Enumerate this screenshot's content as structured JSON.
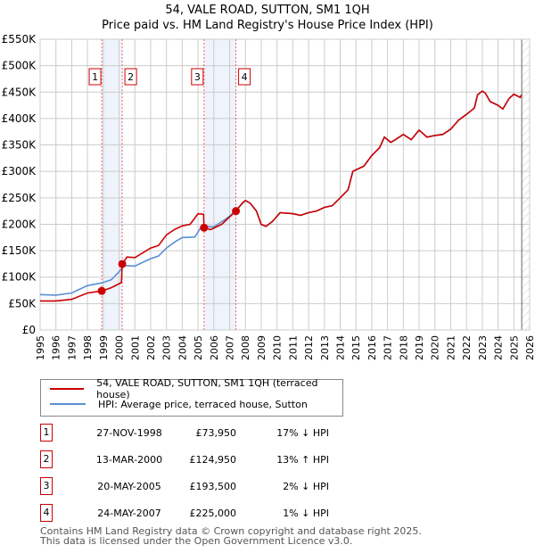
{
  "chart_data": {
    "type": "line",
    "title": "54, VALE ROAD, SUTTON, SM1 1QH",
    "subtitle": "Price paid vs. HM Land Registry's House Price Index (HPI)",
    "xlim": [
      1995,
      2026
    ],
    "ylim": [
      0,
      550000
    ],
    "y_ticks": [
      "£0",
      "£50K",
      "£100K",
      "£150K",
      "£200K",
      "£250K",
      "£300K",
      "£350K",
      "£400K",
      "£450K",
      "£500K",
      "£550K"
    ],
    "x_ticks": [
      "1995",
      "1996",
      "1997",
      "1998",
      "1999",
      "2000",
      "2001",
      "2002",
      "2003",
      "2004",
      "2005",
      "2006",
      "2007",
      "2008",
      "2009",
      "2010",
      "2011",
      "2012",
      "2013",
      "2014",
      "2015",
      "2016",
      "2017",
      "2018",
      "2019",
      "2020",
      "2021",
      "2022",
      "2023",
      "2024",
      "2025",
      "2026"
    ],
    "grid": true,
    "series": [
      {
        "name": "54, VALE ROAD, SUTTON, SM1 1QH (terraced house)",
        "color": "#cc0000",
        "points": [
          [
            1995,
            55000
          ],
          [
            1996,
            55000
          ],
          [
            1997,
            58000
          ],
          [
            1998,
            70000
          ],
          [
            1998.9,
            73950
          ],
          [
            1999.5,
            80000
          ],
          [
            2000.15,
            90000
          ],
          [
            2000.2,
            124950
          ],
          [
            2000.5,
            138000
          ],
          [
            2001,
            137000
          ],
          [
            2002,
            155000
          ],
          [
            2002.5,
            160000
          ],
          [
            2003,
            180000
          ],
          [
            2003.5,
            190000
          ],
          [
            2004,
            197000
          ],
          [
            2004.5,
            200000
          ],
          [
            2005,
            220000
          ],
          [
            2005.35,
            219000
          ],
          [
            2005.38,
            193500
          ],
          [
            2005.8,
            190000
          ],
          [
            2006.5,
            200000
          ],
          [
            2007.4,
            225000
          ],
          [
            2007.8,
            240000
          ],
          [
            2008,
            245000
          ],
          [
            2008.3,
            240000
          ],
          [
            2008.7,
            225000
          ],
          [
            2009,
            200000
          ],
          [
            2009.3,
            196000
          ],
          [
            2009.7,
            205000
          ],
          [
            2010.2,
            222000
          ],
          [
            2011,
            220000
          ],
          [
            2011.5,
            217000
          ],
          [
            2012,
            222000
          ],
          [
            2012.5,
            225000
          ],
          [
            2013,
            232000
          ],
          [
            2013.5,
            235000
          ],
          [
            2014,
            250000
          ],
          [
            2014.5,
            265000
          ],
          [
            2014.8,
            300000
          ],
          [
            2015,
            303000
          ],
          [
            2015.5,
            310000
          ],
          [
            2016,
            330000
          ],
          [
            2016.5,
            345000
          ],
          [
            2016.8,
            365000
          ],
          [
            2017.2,
            355000
          ],
          [
            2017.5,
            360000
          ],
          [
            2018,
            370000
          ],
          [
            2018.5,
            360000
          ],
          [
            2019,
            378000
          ],
          [
            2019.5,
            365000
          ],
          [
            2020,
            368000
          ],
          [
            2020.5,
            370000
          ],
          [
            2021,
            380000
          ],
          [
            2021.5,
            397000
          ],
          [
            2022,
            408000
          ],
          [
            2022.5,
            420000
          ],
          [
            2022.7,
            445000
          ],
          [
            2023,
            452000
          ],
          [
            2023.2,
            448000
          ],
          [
            2023.5,
            432000
          ],
          [
            2024,
            425000
          ],
          [
            2024.3,
            418000
          ],
          [
            2024.7,
            438000
          ],
          [
            2025,
            446000
          ],
          [
            2025.4,
            440000
          ],
          [
            2025.5,
            445000
          ]
        ]
      },
      {
        "name": "HPI: Average price, terraced house, Sutton",
        "color": "#5b8fd4",
        "points": [
          [
            1995,
            67000
          ],
          [
            1996,
            66000
          ],
          [
            1997,
            70000
          ],
          [
            1998,
            84000
          ],
          [
            1998.9,
            89000
          ],
          [
            1999.5,
            95000
          ],
          [
            2000,
            110000
          ],
          [
            2000.3,
            122000
          ],
          [
            2001,
            121000
          ],
          [
            2001.5,
            128000
          ],
          [
            2002,
            135000
          ],
          [
            2002.5,
            140000
          ],
          [
            2003,
            155000
          ],
          [
            2003.5,
            166000
          ],
          [
            2004,
            175000
          ],
          [
            2004.8,
            176000
          ],
          [
            2005.2,
            195000
          ],
          [
            2005.5,
            196000
          ],
          [
            2006,
            195000
          ],
          [
            2006.5,
            205000
          ],
          [
            2007,
            215000
          ],
          [
            2007.5,
            230000
          ],
          [
            2008,
            245000
          ],
          [
            2008.3,
            240000
          ],
          [
            2008.7,
            225000
          ],
          [
            2009,
            200000
          ],
          [
            2009.3,
            196000
          ],
          [
            2009.7,
            205000
          ],
          [
            2010.2,
            222000
          ],
          [
            2011,
            220000
          ],
          [
            2011.5,
            217000
          ],
          [
            2012,
            222000
          ],
          [
            2012.5,
            225000
          ],
          [
            2013,
            232000
          ],
          [
            2013.5,
            235000
          ],
          [
            2014,
            250000
          ],
          [
            2014.5,
            265000
          ],
          [
            2014.8,
            300000
          ],
          [
            2015,
            303000
          ],
          [
            2015.5,
            310000
          ],
          [
            2016,
            330000
          ],
          [
            2016.5,
            345000
          ],
          [
            2016.8,
            365000
          ],
          [
            2017.2,
            355000
          ],
          [
            2017.5,
            360000
          ],
          [
            2018,
            370000
          ],
          [
            2018.5,
            360000
          ],
          [
            2019,
            378000
          ],
          [
            2019.5,
            365000
          ],
          [
            2020,
            368000
          ],
          [
            2020.5,
            370000
          ],
          [
            2021,
            380000
          ],
          [
            2021.5,
            397000
          ],
          [
            2022,
            408000
          ],
          [
            2022.5,
            420000
          ],
          [
            2022.7,
            445000
          ],
          [
            2023,
            452000
          ],
          [
            2023.2,
            448000
          ],
          [
            2023.5,
            432000
          ],
          [
            2024,
            425000
          ],
          [
            2024.3,
            418000
          ],
          [
            2024.7,
            438000
          ],
          [
            2025,
            446000
          ],
          [
            2025.4,
            440000
          ],
          [
            2025.5,
            445000
          ]
        ]
      }
    ],
    "sales": [
      {
        "label": "1",
        "x": 1998.9,
        "y": 73950
      },
      {
        "label": "2",
        "x": 2000.2,
        "y": 124950
      },
      {
        "label": "3",
        "x": 2005.38,
        "y": 193500
      },
      {
        "label": "4",
        "x": 2007.4,
        "y": 225000
      }
    ],
    "shaded_ranges": [
      [
        1998.9,
        2000.2
      ],
      [
        2005.38,
        2007.4
      ]
    ],
    "forecast_from": 2025.5
  },
  "table": [
    {
      "num": "1",
      "date": "27-NOV-1998",
      "price": "£73,950",
      "hpi": "17% ↓ HPI"
    },
    {
      "num": "2",
      "date": "13-MAR-2000",
      "price": "£124,950",
      "hpi": "13% ↑ HPI"
    },
    {
      "num": "3",
      "date": "20-MAY-2005",
      "price": "£193,500",
      "hpi": "2% ↓ HPI"
    },
    {
      "num": "4",
      "date": "24-MAY-2007",
      "price": "£225,000",
      "hpi": "1% ↓ HPI"
    }
  ],
  "footer": {
    "line1": "Contains HM Land Registry data © Crown copyright and database right 2025.",
    "line2": "This data is licensed under the Open Government Licence v3.0."
  }
}
